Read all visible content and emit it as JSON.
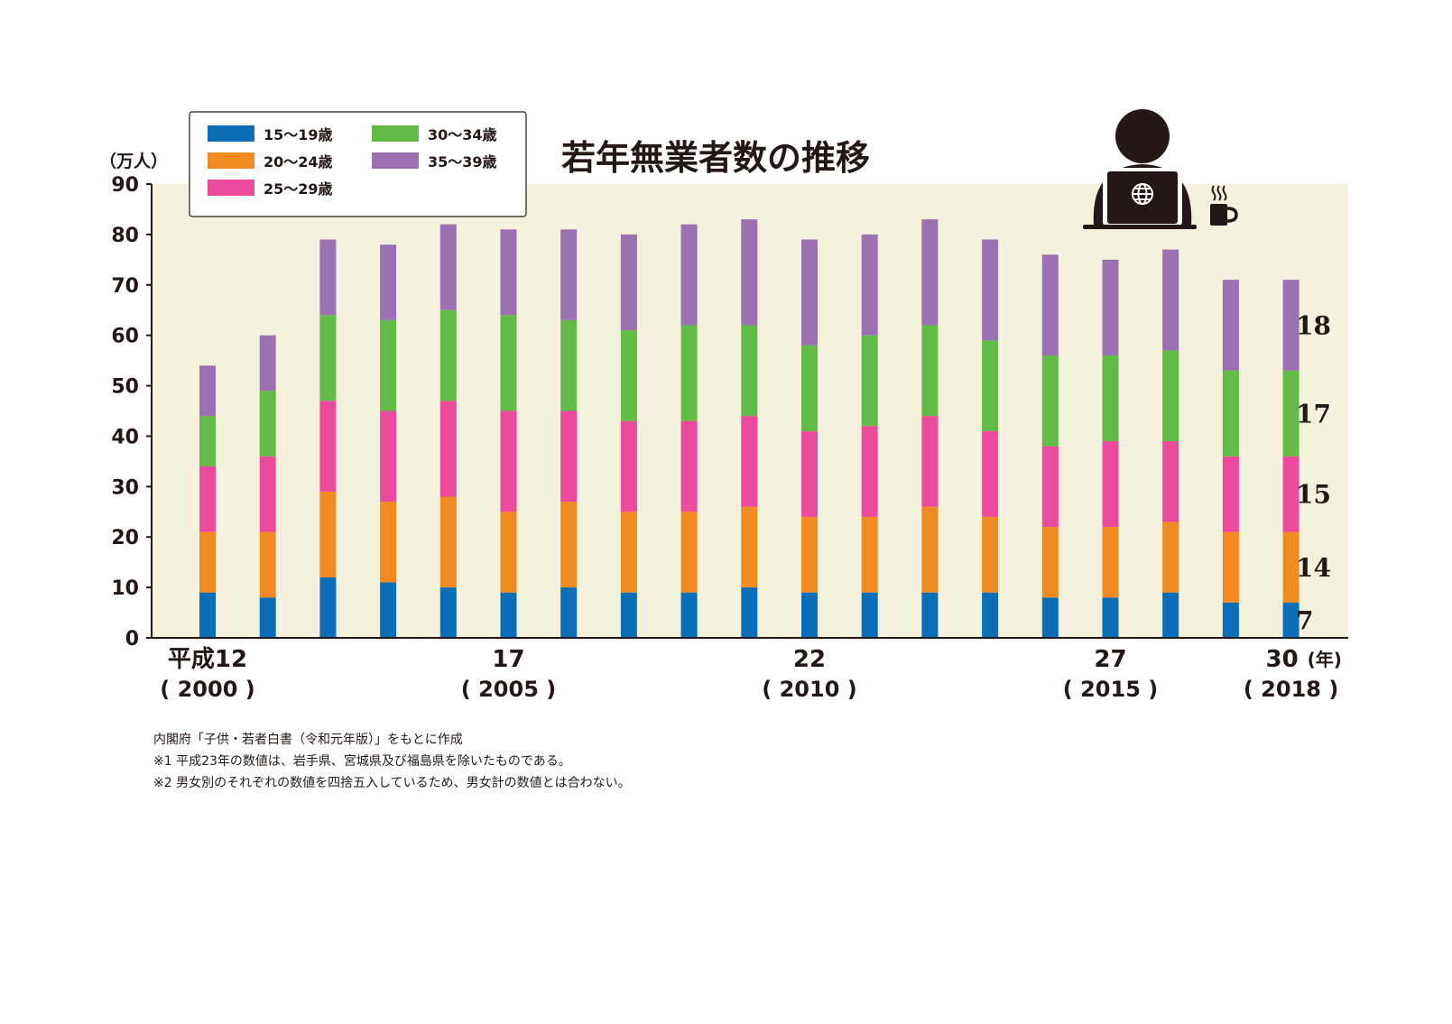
{
  "chart_data": {
    "type": "bar",
    "stacked": true,
    "title": "若年無業者数の推移",
    "unit_label": "（万人）",
    "year_unit": "(年)",
    "ylim": [
      0,
      90
    ],
    "y_ticks": [
      "0",
      "10",
      "20",
      "30",
      "40",
      "50",
      "60",
      "70",
      "80",
      "90"
    ],
    "categories": [
      "2000",
      "2001",
      "2002",
      "2003",
      "2004",
      "2005",
      "2006",
      "2007",
      "2008",
      "2009",
      "2010",
      "2011",
      "2012",
      "2013",
      "2014",
      "2015",
      "2016",
      "2017",
      "2018"
    ],
    "x_labels": [
      {
        "index": 0,
        "era": "平成12",
        "year": "( 2000 )"
      },
      {
        "index": 5,
        "era": "17",
        "year": "( 2005 )"
      },
      {
        "index": 10,
        "era": "22",
        "year": "( 2010 )"
      },
      {
        "index": 15,
        "era": "27",
        "year": "( 2015 )"
      },
      {
        "index": 18,
        "era": "30",
        "year": "( 2018 )"
      }
    ],
    "series": [
      {
        "name": "15～19歳",
        "color": "#0a6eb8",
        "values": [
          9,
          8,
          12,
          11,
          10,
          9,
          10,
          9,
          9,
          10,
          9,
          9,
          9,
          9,
          8,
          8,
          9,
          7,
          7
        ]
      },
      {
        "name": "20～24歳",
        "color": "#f28a22",
        "values": [
          12,
          13,
          17,
          16,
          18,
          16,
          17,
          16,
          16,
          16,
          15,
          15,
          17,
          15,
          14,
          14,
          14,
          14,
          14
        ]
      },
      {
        "name": "25～29歳",
        "color": "#ec4a9c",
        "values": [
          13,
          15,
          18,
          18,
          19,
          20,
          18,
          18,
          18,
          18,
          17,
          18,
          18,
          17,
          16,
          17,
          16,
          15,
          15
        ]
      },
      {
        "name": "30～34歳",
        "color": "#62bb46",
        "values": [
          10,
          13,
          17,
          18,
          18,
          19,
          18,
          18,
          19,
          18,
          17,
          18,
          18,
          18,
          18,
          17,
          18,
          17,
          17
        ]
      },
      {
        "name": "35～39歳",
        "color": "#9c71b1",
        "values": [
          10,
          11,
          15,
          15,
          17,
          17,
          18,
          19,
          20,
          21,
          21,
          20,
          21,
          20,
          20,
          19,
          20,
          18,
          18
        ]
      }
    ],
    "end_labels": [
      "7",
      "14",
      "15",
      "17",
      "18"
    ],
    "legend_position": "top-left",
    "grid": false
  },
  "notes": [
    "内閣府「子供・若者白書（令和元年版）」をもとに作成",
    "※1 平成23年の数値は、岩手県、宮城県及び福島県を除いたものである。",
    "※2 男女別のそれぞれの数値を四捨五入しているため、男女計の数値とは合わない。"
  ],
  "icons": [
    "person-at-laptop-icon",
    "globe-icon",
    "coffee-cup-icon"
  ],
  "colors": {
    "plot_background": "#f4f1dc",
    "text": "#231815"
  }
}
